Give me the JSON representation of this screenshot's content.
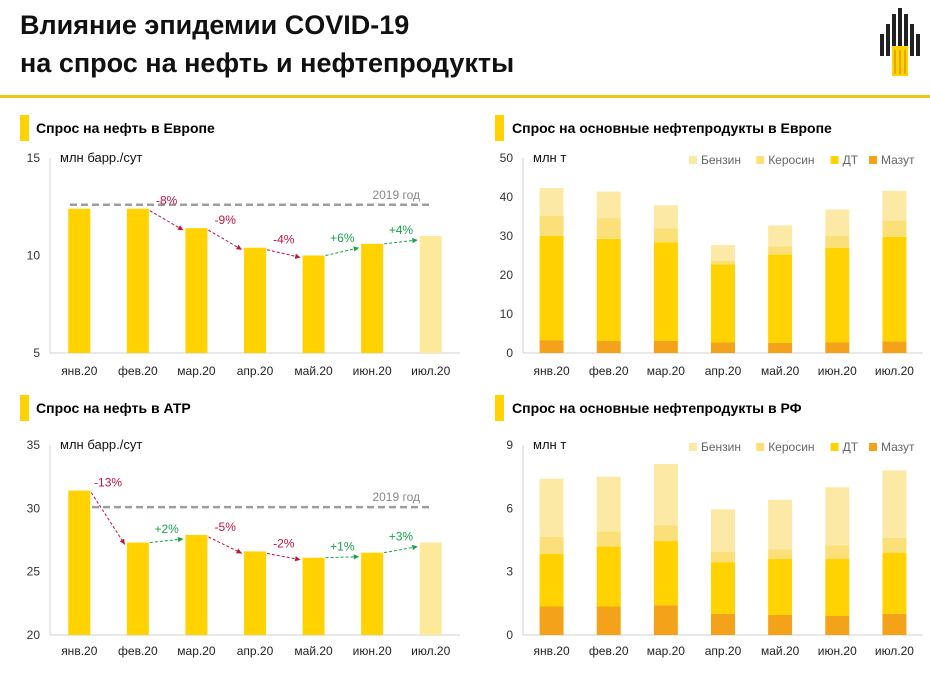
{
  "page": {
    "title_line1": "Влияние эпидемии COVID-19",
    "title_line2": "на спрос на нефть и нефтепродукты"
  },
  "colors": {
    "accent": "#ffd200",
    "line": "#f0c419",
    "bar_main": "#ffd200",
    "bar_forecast": "#fde99a",
    "baseline": "#9e9e9e",
    "arrow_down": "#c0143c",
    "arrow_up": "#1aa050",
    "benzin": "#fde9a6",
    "kerosin": "#fbe07a",
    "dt": "#ffd200",
    "mazut": "#f5a21b"
  },
  "chart_data": [
    {
      "id": "europe_oil",
      "type": "bar",
      "title": "Спрос на нефть в Европе",
      "ylabel": "млн барр./сут",
      "categories": [
        "янв.20",
        "фев.20",
        "мар.20",
        "апр.20",
        "май.20",
        "июн.20",
        "июл.20"
      ],
      "values": [
        12.4,
        12.4,
        11.4,
        10.4,
        10.0,
        10.6,
        11.0
      ],
      "ylim": [
        5,
        15
      ],
      "yticks": [
        5,
        10,
        15
      ],
      "baseline": {
        "label": "2019 год",
        "value": 12.6
      },
      "changes": [
        "-8%",
        "-9%",
        "-4%",
        "+6%",
        "+4%"
      ],
      "last_is_forecast": true
    },
    {
      "id": "europe_products",
      "type": "bar",
      "stacked": true,
      "title": "Спрос на основные нефтепродукты в Европе",
      "ylabel": "млн т",
      "categories": [
        "янв.20",
        "фев.20",
        "мар.20",
        "апр.20",
        "май.20",
        "июн.20",
        "июл.20"
      ],
      "ylim": [
        0,
        50
      ],
      "yticks": [
        0,
        10,
        20,
        30,
        40,
        50
      ],
      "legend": "top-right",
      "series": [
        {
          "name": "Мазут",
          "color_key": "mazut",
          "values": [
            3.3,
            3.1,
            3.1,
            2.7,
            2.6,
            2.7,
            3.0
          ]
        },
        {
          "name": "ДТ",
          "color_key": "dt",
          "values": [
            26.7,
            26.2,
            25.3,
            20.0,
            22.7,
            24.3,
            26.8
          ]
        },
        {
          "name": "Керосин",
          "color_key": "kerosin",
          "values": [
            5.2,
            5.3,
            3.6,
            1.0,
            2.0,
            3.0,
            4.2
          ]
        },
        {
          "name": "Бензин",
          "color_key": "benzin",
          "values": [
            7.1,
            6.8,
            5.9,
            4.0,
            5.4,
            6.8,
            7.6
          ]
        }
      ]
    },
    {
      "id": "apr_oil",
      "type": "bar",
      "title": "Спрос на нефть в АТР",
      "ylabel": "млн барр./сут",
      "categories": [
        "янв.20",
        "фев.20",
        "мар.20",
        "апр.20",
        "май.20",
        "июн.20",
        "июл.20"
      ],
      "values": [
        31.4,
        27.3,
        27.9,
        26.6,
        26.1,
        26.5,
        27.3
      ],
      "ylim": [
        20,
        35
      ],
      "yticks": [
        20,
        25,
        30,
        35
      ],
      "baseline": {
        "label": "2019 год",
        "value": 30.1
      },
      "changes": [
        "-13%",
        "+2%",
        "-5%",
        "-2%",
        "+1%",
        "+3%"
      ],
      "last_is_forecast": true
    },
    {
      "id": "rf_products",
      "type": "bar",
      "stacked": true,
      "title": "Спрос на основные нефтепродукты в РФ",
      "ylabel": "млн т",
      "categories": [
        "янв.20",
        "фев.20",
        "мар.20",
        "апр.20",
        "май.20",
        "июн.20",
        "июл.20"
      ],
      "ylim": [
        0,
        9
      ],
      "yticks": [
        0,
        3,
        6,
        9
      ],
      "legend": "top-right",
      "series": [
        {
          "name": "Мазут",
          "color_key": "mazut",
          "values": [
            1.35,
            1.35,
            1.4,
            1.0,
            0.95,
            0.9,
            1.0
          ]
        },
        {
          "name": "ДТ",
          "color_key": "dt",
          "values": [
            2.5,
            2.85,
            3.05,
            2.45,
            2.65,
            2.7,
            2.9
          ]
        },
        {
          "name": "Керосин",
          "color_key": "kerosin",
          "values": [
            0.8,
            0.7,
            0.75,
            0.5,
            0.45,
            0.65,
            0.7
          ]
        },
        {
          "name": "Бензин",
          "color_key": "benzin",
          "values": [
            2.75,
            2.6,
            2.9,
            2.0,
            2.35,
            2.75,
            3.2
          ]
        }
      ]
    }
  ]
}
